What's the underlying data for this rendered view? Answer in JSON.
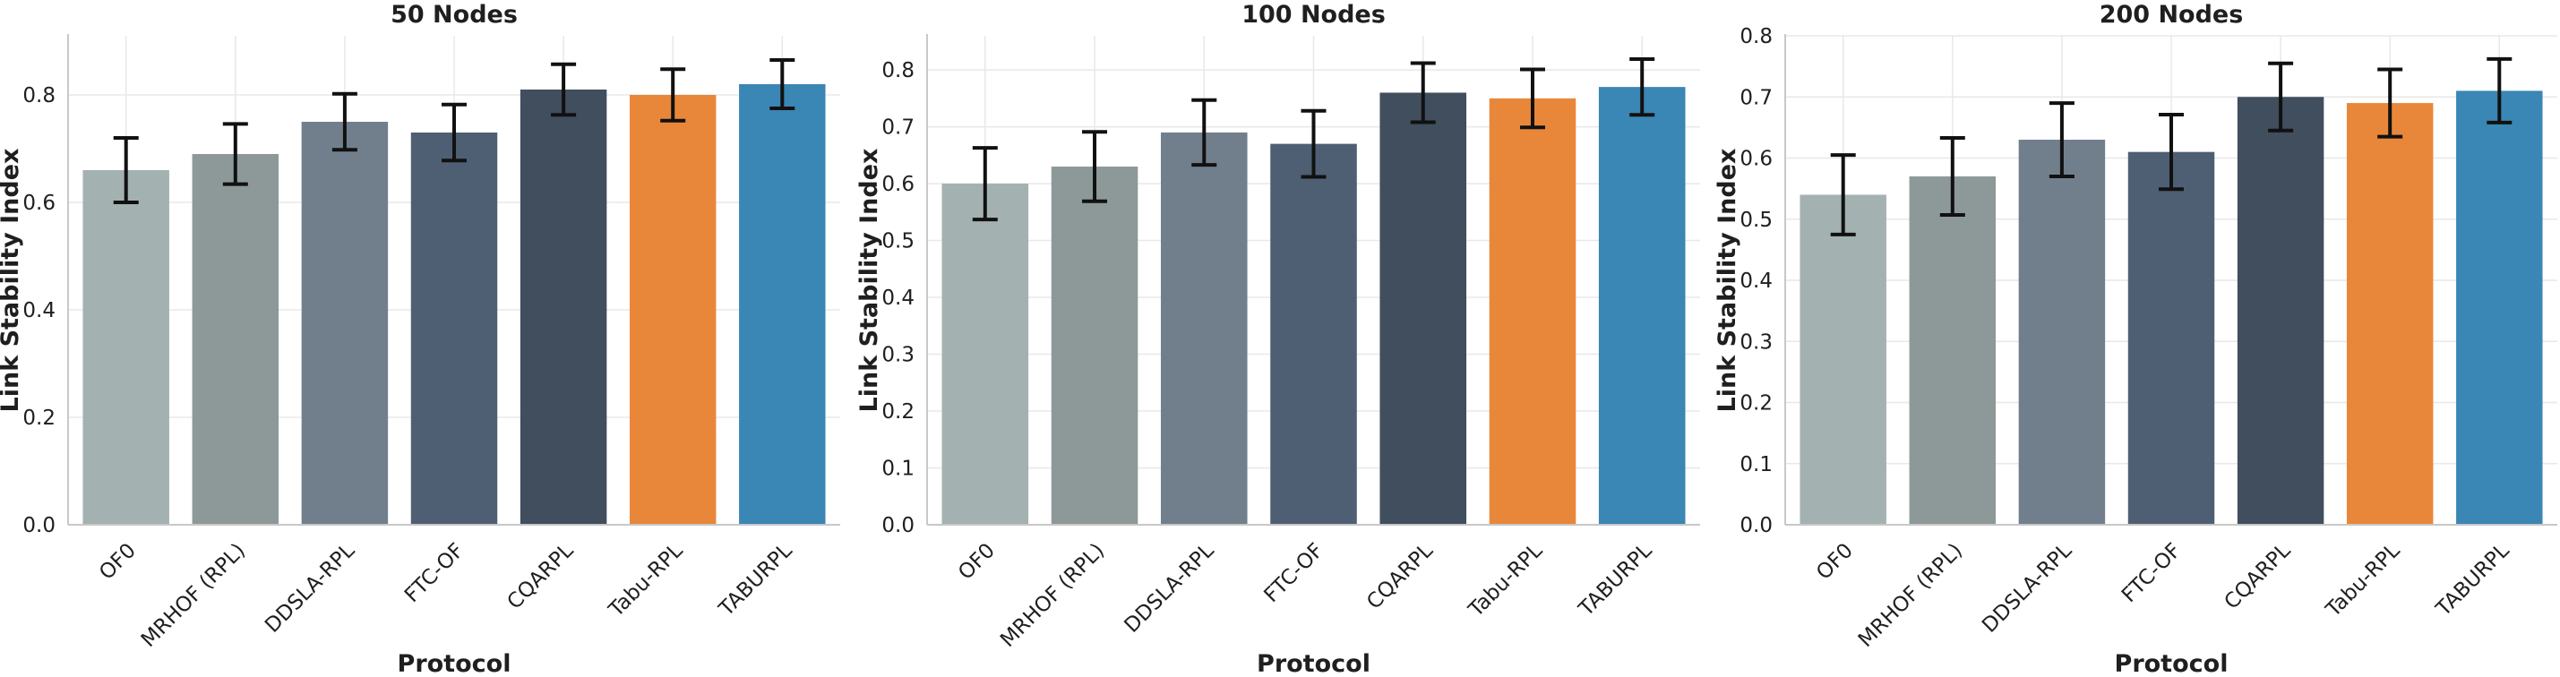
{
  "chart_data": [
    {
      "type": "bar",
      "title": "50 Nodes",
      "xlabel": "Protocol",
      "ylabel": "Link Stability Index",
      "categories": [
        "OF0",
        "MRHOF (RPL)",
        "DDSLA-RPL",
        "FTC-OF",
        "CQARPL",
        "Tabu-RPL",
        "TABURPL"
      ],
      "values": [
        0.66,
        0.69,
        0.75,
        0.73,
        0.81,
        0.8,
        0.82
      ],
      "errors": [
        0.06,
        0.056,
        0.052,
        0.052,
        0.047,
        0.048,
        0.045
      ],
      "ylim": [
        0,
        0.91
      ],
      "yticks": [
        "0.0",
        "0.2",
        "0.4",
        "0.6",
        "0.8"
      ],
      "grid": true
    },
    {
      "type": "bar",
      "title": "100 Nodes",
      "xlabel": "Protocol",
      "ylabel": "Link Stability Index",
      "categories": [
        "OF0",
        "MRHOF (RPL)",
        "DDSLA-RPL",
        "FTC-OF",
        "CQARPL",
        "Tabu-RPL",
        "TABURPL"
      ],
      "values": [
        0.6,
        0.63,
        0.69,
        0.67,
        0.76,
        0.75,
        0.77
      ],
      "errors": [
        0.063,
        0.061,
        0.057,
        0.058,
        0.052,
        0.051,
        0.049
      ],
      "ylim": [
        0,
        0.86
      ],
      "yticks": [
        "0.0",
        "0.1",
        "0.2",
        "0.3",
        "0.4",
        "0.5",
        "0.6",
        "0.7",
        "0.8"
      ],
      "grid": true
    },
    {
      "type": "bar",
      "title": "200 Nodes",
      "xlabel": "Protocol",
      "ylabel": "Link Stability Index",
      "categories": [
        "OF0",
        "MRHOF (RPL)",
        "DDSLA-RPL",
        "FTC-OF",
        "CQARPL",
        "Tabu-RPL",
        "TABURPL"
      ],
      "values": [
        0.54,
        0.57,
        0.63,
        0.61,
        0.7,
        0.69,
        0.71
      ],
      "errors": [
        0.065,
        0.063,
        0.06,
        0.061,
        0.055,
        0.055,
        0.052
      ],
      "ylim": [
        0,
        0.8
      ],
      "yticks": [
        "0.0",
        "0.1",
        "0.2",
        "0.3",
        "0.4",
        "0.5",
        "0.6",
        "0.7",
        "0.8"
      ],
      "grid": true
    }
  ],
  "colors": {
    "bars": [
      "#a4b1b1",
      "#8d9998",
      "#717f8d",
      "#4f5f73",
      "#404e5e",
      "#e8873a",
      "#3a86b4"
    ],
    "axis": "#c8c8c8",
    "grid": "#e8e8e8",
    "error": "#111111"
  }
}
